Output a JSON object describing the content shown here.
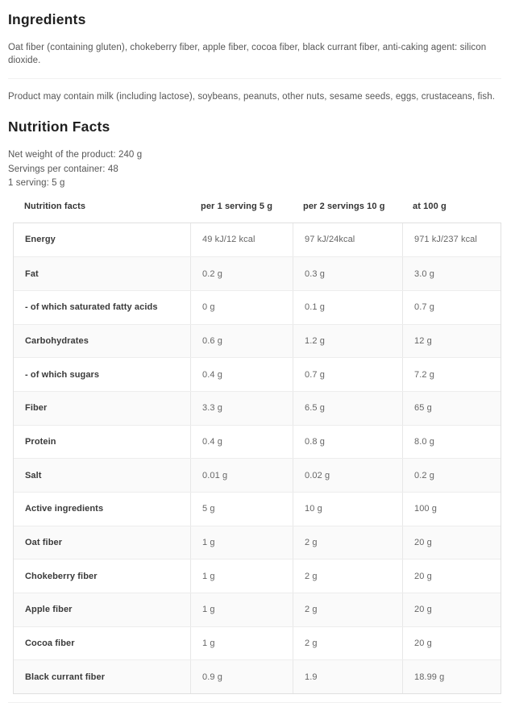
{
  "ingredients": {
    "title": "Ingredients",
    "composition": "Oat fiber (containing gluten), chokeberry fiber, apple fiber, cocoa fiber, black currant fiber, anti-caking agent: silicon dioxide.",
    "allergen_notice": "Product may contain milk (including lactose), soybeans, peanuts, other nuts, sesame seeds, eggs, crustaceans, fish."
  },
  "nutrition": {
    "title": "Nutrition Facts",
    "net_weight": "Net weight of the product: 240 g",
    "servings_per_container": "Servings per container: 48",
    "serving_size": "1 serving: 5 g",
    "table": {
      "headers": [
        "Nutrition facts",
        "per 1 serving 5 g",
        "per 2 servings 10 g",
        "at 100 g"
      ],
      "rows": [
        [
          "Energy",
          "49 kJ/12 kcal",
          "97 kJ/24kcal",
          "971 kJ/237 kcal"
        ],
        [
          "Fat",
          "0.2 g",
          "0.3 g",
          "3.0 g"
        ],
        [
          "- of which saturated fatty acids",
          "0 g",
          "0.1 g",
          "0.7 g"
        ],
        [
          "Carbohydrates",
          "0.6 g",
          "1.2 g",
          "12 g"
        ],
        [
          "- of which sugars",
          "0.4 g",
          "0.7 g",
          "7.2 g"
        ],
        [
          "Fiber",
          "3.3 g",
          "6.5 g",
          "65 g"
        ],
        [
          "Protein",
          "0.4 g",
          "0.8 g",
          "8.0 g"
        ],
        [
          "Salt",
          "0.01 g",
          "0.02 g",
          "0.2 g"
        ],
        [
          "Active ingredients",
          "5 g",
          "10 g",
          "100 g"
        ],
        [
          "Oat fiber",
          "1 g",
          "2 g",
          "20 g"
        ],
        [
          "Chokeberry fiber",
          "1 g",
          "2 g",
          "20 g"
        ],
        [
          "Apple fiber",
          "1 g",
          "2 g",
          "20 g"
        ],
        [
          "Cocoa fiber",
          "1 g",
          "2 g",
          "20 g"
        ],
        [
          "Black currant fiber",
          "0.9 g",
          "1.9",
          "18.99 g"
        ]
      ]
    }
  },
  "colors": {
    "heading_text": "#1f1f1f",
    "body_text": "#565656",
    "table_border": "#e0e0e0",
    "stripe_row_background": "#fafafa"
  }
}
